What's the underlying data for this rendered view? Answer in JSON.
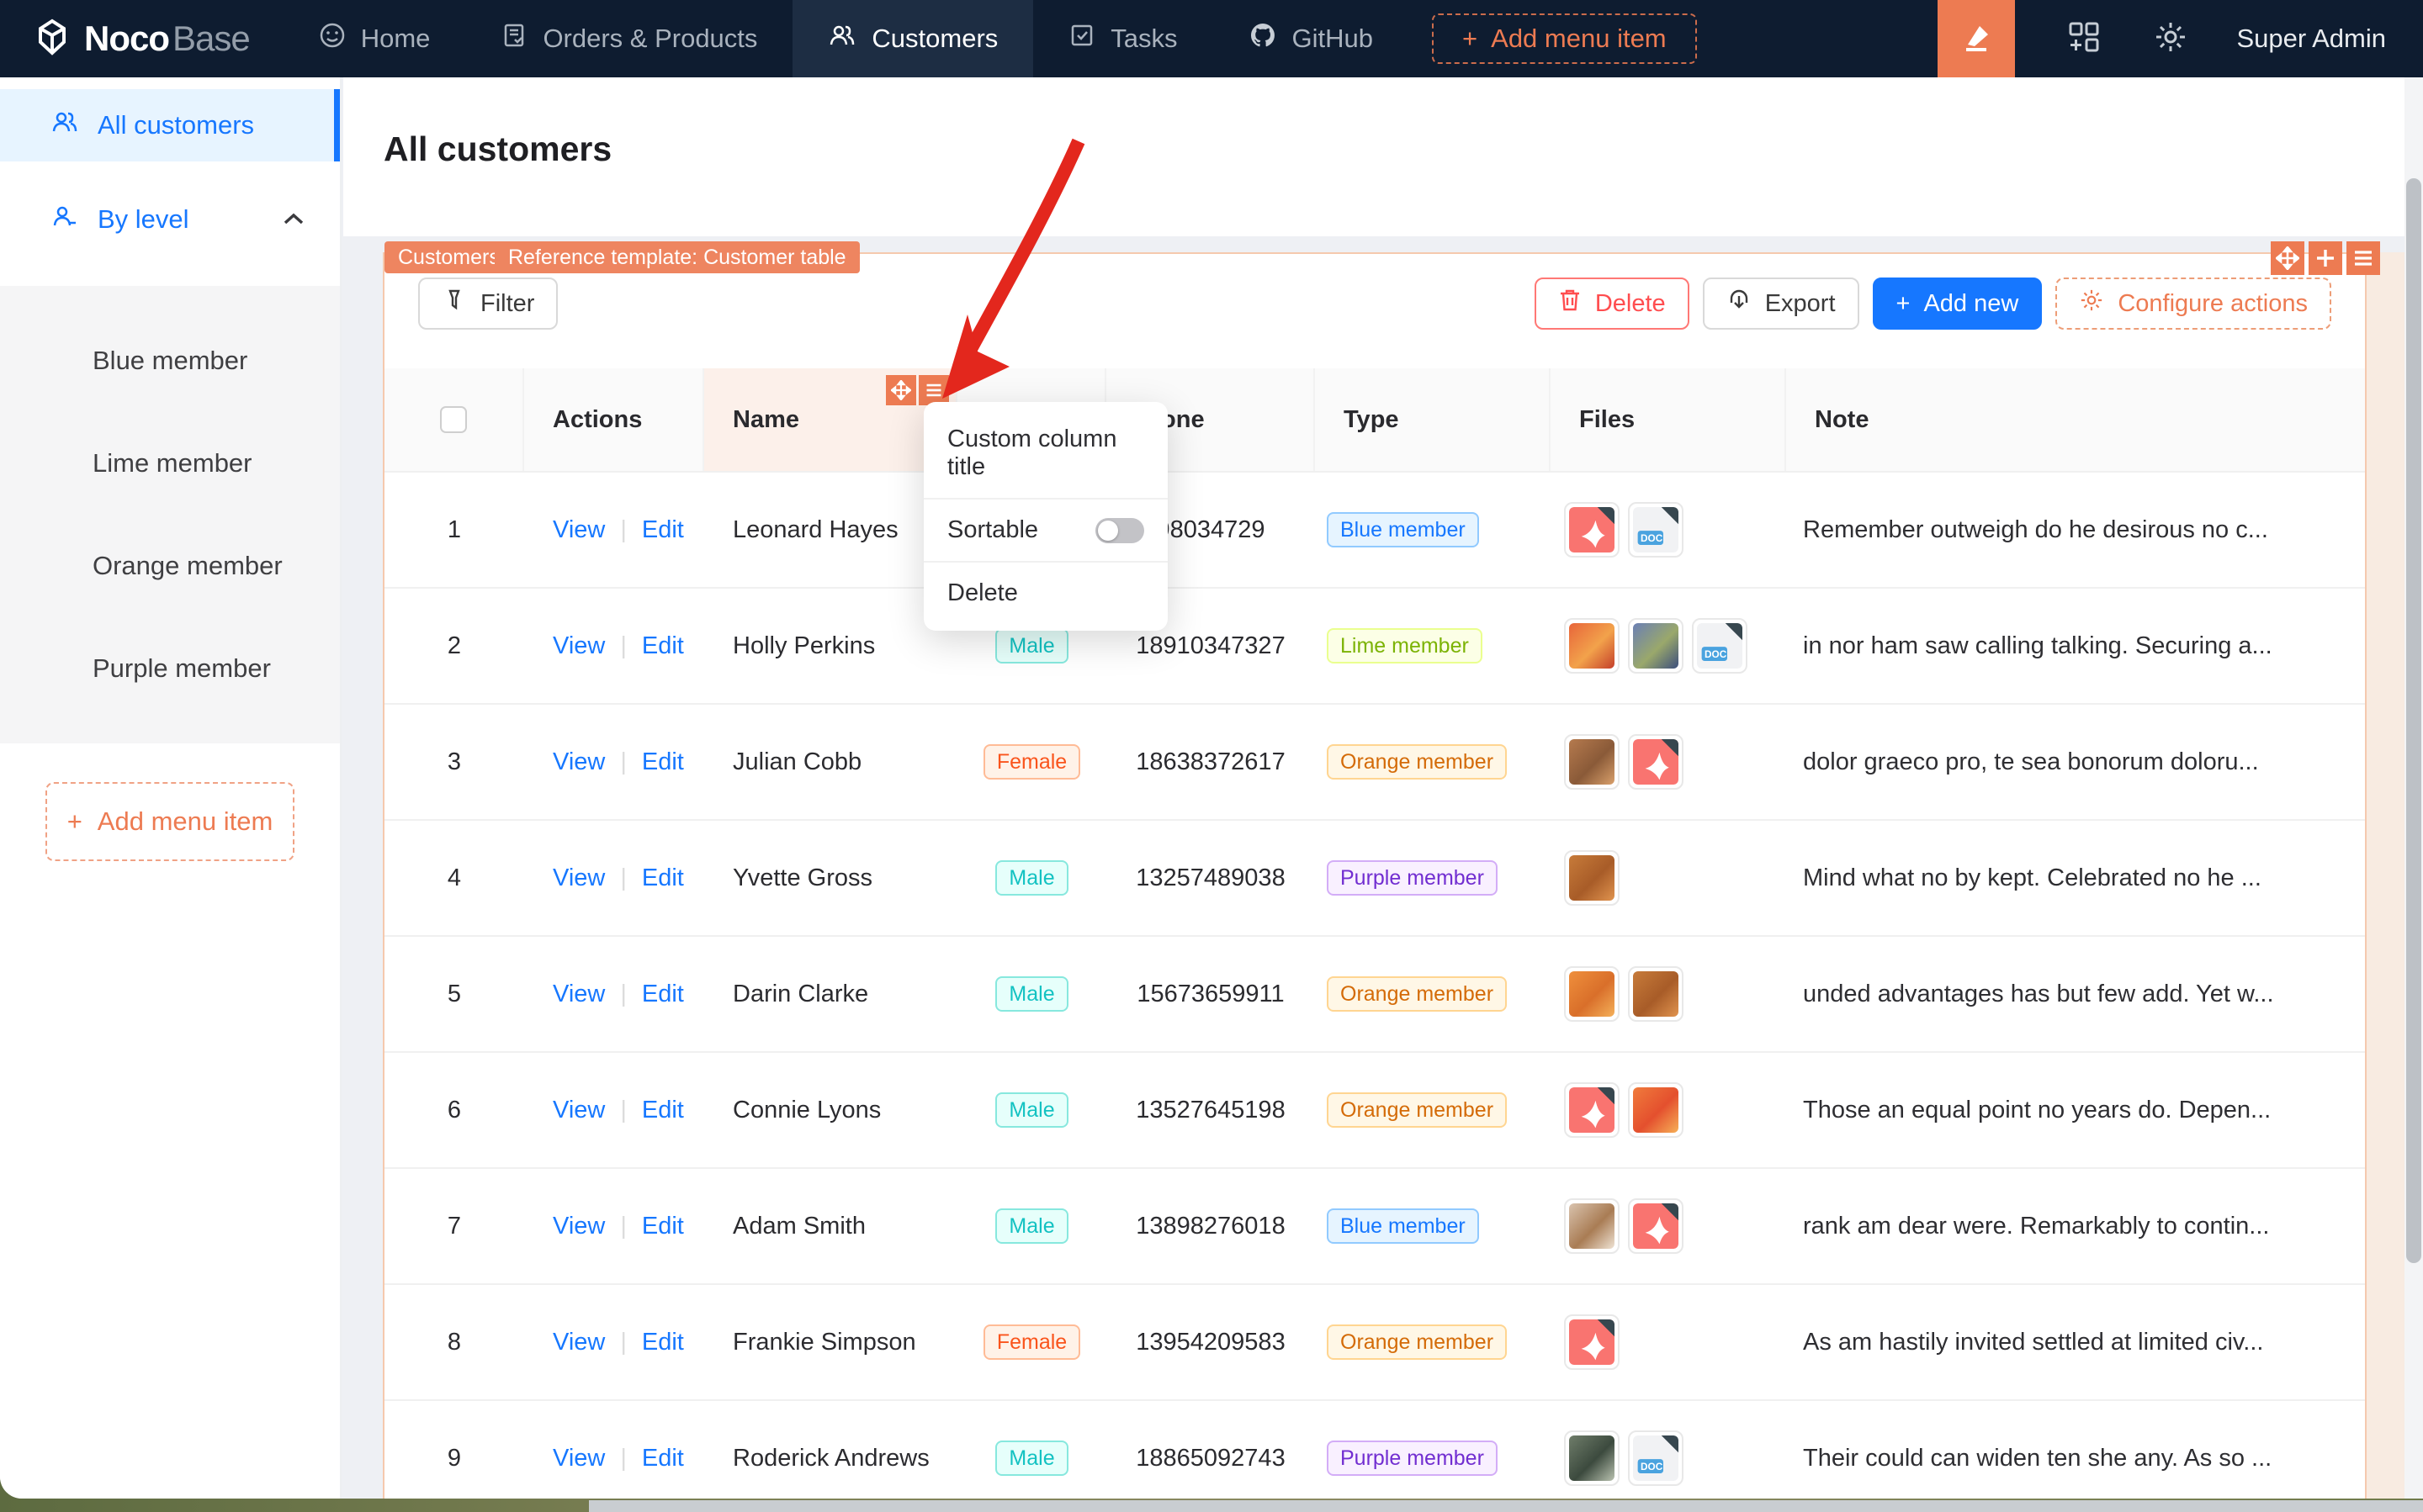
{
  "navbar": {
    "brand": {
      "bold": "Noco",
      "light": "Base"
    },
    "items": [
      {
        "label": "Home",
        "icon": "smile-icon",
        "active": false
      },
      {
        "label": "Orders & Products",
        "icon": "orders-icon",
        "active": false
      },
      {
        "label": "Customers",
        "icon": "customers-icon",
        "active": true
      },
      {
        "label": "Tasks",
        "icon": "tasks-icon",
        "active": false
      },
      {
        "label": "GitHub",
        "icon": "github-icon",
        "active": false
      }
    ],
    "add_menu_item": "Add menu item",
    "user": "Super Admin"
  },
  "sidebar": {
    "all_customers": "All customers",
    "by_level": "By level",
    "level_children": [
      "Blue member",
      "Lime member",
      "Orange member",
      "Purple member"
    ],
    "add_menu_item": "Add menu item"
  },
  "page": {
    "title": "All customers"
  },
  "block": {
    "tag_collection": "Customers",
    "tag_template": "Reference template: Customer table"
  },
  "toolbar": {
    "filter": "Filter",
    "delete": "Delete",
    "export": "Export",
    "add_new": "Add new",
    "configure_actions": "Configure actions"
  },
  "popup": {
    "custom_column_title": "Custom column title",
    "sortable": "Sortable",
    "sortable_enabled": false,
    "delete": "Delete"
  },
  "table": {
    "headers": {
      "actions": "Actions",
      "name": "Name",
      "gender": "",
      "phone": "Phone",
      "type": "Type",
      "files": "Files",
      "note": "Note"
    },
    "link_labels": {
      "view": "View",
      "edit": "Edit"
    },
    "rows": [
      {
        "index": "1",
        "name": "Leonard Hayes",
        "gender": "",
        "gender_color": "",
        "phone": "98034729",
        "type": "Blue member",
        "type_color": "blue",
        "files": [
          {
            "kind": "pdf"
          },
          {
            "kind": "doc"
          }
        ],
        "note": "Remember outweigh do he desirous no c..."
      },
      {
        "index": "2",
        "name": "Holly Perkins",
        "gender": "Male",
        "gender_color": "cyan",
        "phone": "18910347327",
        "type": "Lime member",
        "type_color": "lime",
        "files": [
          {
            "kind": "image",
            "name": "red-fruit"
          },
          {
            "kind": "image",
            "name": "blue-flowers"
          },
          {
            "kind": "doc"
          }
        ],
        "note": "in nor ham saw calling talking. Securing a..."
      },
      {
        "index": "3",
        "name": "Julian Cobb",
        "gender": "Female",
        "gender_color": "volcano",
        "phone": "18638372617",
        "type": "Orange member",
        "type_color": "orange",
        "files": [
          {
            "kind": "image",
            "name": "food-platter"
          },
          {
            "kind": "pdf"
          }
        ],
        "note": "dolor graeco pro, te sea bonorum doloru..."
      },
      {
        "index": "4",
        "name": "Yvette Gross",
        "gender": "Male",
        "gender_color": "cyan",
        "phone": "13257489038",
        "type": "Purple member",
        "type_color": "purple",
        "files": [
          {
            "kind": "image",
            "name": "pumpkins"
          }
        ],
        "note": "Mind what no by kept. Celebrated no he ..."
      },
      {
        "index": "5",
        "name": "Darin Clarke",
        "gender": "Male",
        "gender_color": "cyan",
        "phone": "15673659911",
        "type": "Orange member",
        "type_color": "orange",
        "files": [
          {
            "kind": "image",
            "name": "oranges"
          },
          {
            "kind": "image",
            "name": "pumpkins"
          }
        ],
        "note": "unded advantages has but few add. Yet w..."
      },
      {
        "index": "6",
        "name": "Connie Lyons",
        "gender": "Male",
        "gender_color": "cyan",
        "phone": "13527645198",
        "type": "Orange member",
        "type_color": "orange",
        "files": [
          {
            "kind": "pdf"
          },
          {
            "kind": "image",
            "name": "orange-fruit"
          }
        ],
        "note": "Those an equal point no years do. Depen..."
      },
      {
        "index": "7",
        "name": "Adam Smith",
        "gender": "Male",
        "gender_color": "cyan",
        "phone": "13898276018",
        "type": "Blue member",
        "type_color": "blue",
        "files": [
          {
            "kind": "image",
            "name": "coffee"
          },
          {
            "kind": "pdf"
          }
        ],
        "note": "rank am dear were. Remarkably to contin..."
      },
      {
        "index": "8",
        "name": "Frankie Simpson",
        "gender": "Female",
        "gender_color": "volcano",
        "phone": "13954209583",
        "type": "Orange member",
        "type_color": "orange",
        "files": [
          {
            "kind": "pdf"
          }
        ],
        "note": "As am hastily invited settled at limited civ..."
      },
      {
        "index": "9",
        "name": "Roderick Andrews",
        "gender": "Male",
        "gender_color": "cyan",
        "phone": "18865092743",
        "type": "Purple member",
        "type_color": "purple",
        "files": [
          {
            "kind": "image",
            "name": "storefront"
          },
          {
            "kind": "doc"
          }
        ],
        "note": "Their could can widen ten she any. As so ..."
      }
    ]
  },
  "colors": {
    "accent_orange": "#ed7b52",
    "primary_blue": "#1677ff",
    "arrow_red": "#e3271d"
  }
}
